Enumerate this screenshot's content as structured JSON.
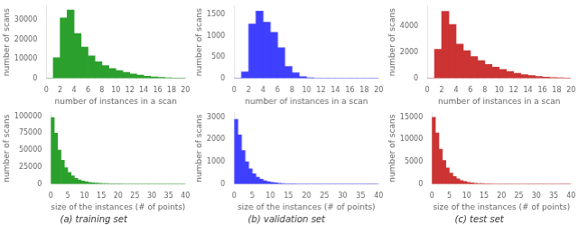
{
  "chart_data": [
    {
      "type": "histogram",
      "bins": [
        0,
        1,
        2,
        3,
        4,
        5,
        6,
        7,
        8,
        9,
        10,
        11,
        12,
        13,
        14,
        15,
        16,
        17,
        18,
        19,
        20
      ],
      "values": [
        0,
        10500,
        31000,
        35000,
        23000,
        16000,
        11500,
        8500,
        6500,
        5000,
        4000,
        3000,
        2200,
        1600,
        1100,
        700,
        450,
        280,
        160,
        80
      ],
      "color": "#2ca02c",
      "xlabel": "number of instances in a scan",
      "ylabel": "number of scans",
      "xlim": [
        0,
        20
      ],
      "xticks": [
        0,
        2,
        4,
        6,
        8,
        10,
        12,
        14,
        16,
        18,
        20
      ],
      "ylim": [
        0,
        37000
      ],
      "yticks": [
        0,
        10000,
        20000,
        30000
      ],
      "grid": false
    },
    {
      "type": "histogram",
      "bins": [
        0,
        1,
        2,
        3,
        4,
        5,
        6,
        7,
        8,
        9,
        10,
        11,
        12,
        13,
        14,
        15,
        16,
        17,
        18,
        19,
        20
      ],
      "values": [
        0,
        150,
        1280,
        1580,
        1320,
        1080,
        720,
        280,
        130,
        40,
        10,
        0,
        0,
        0,
        0,
        0,
        0,
        0,
        0,
        0
      ],
      "color": "#3f3fff",
      "xlabel": "number of instances in a scan",
      "ylabel": "number of scans",
      "xlim": [
        0,
        20
      ],
      "xticks": [
        0,
        2,
        4,
        6,
        8,
        10,
        12,
        14,
        16,
        18,
        20
      ],
      "ylim": [
        0,
        1700
      ],
      "yticks": [
        0,
        500,
        1000,
        1500
      ],
      "grid": false
    },
    {
      "type": "histogram",
      "bins": [
        0,
        1,
        2,
        3,
        4,
        5,
        6,
        7,
        8,
        9,
        10,
        11,
        12,
        13,
        14,
        15,
        16,
        17,
        18,
        19,
        20
      ],
      "values": [
        0,
        2200,
        5100,
        4100,
        2600,
        2100,
        1650,
        1350,
        1050,
        850,
        680,
        520,
        380,
        280,
        200,
        140,
        90,
        55,
        30,
        15
      ],
      "color": "#cc3333",
      "xlabel": "number of instances in a scan",
      "ylabel": "number of scans",
      "xlim": [
        0,
        20
      ],
      "xticks": [
        0,
        2,
        4,
        6,
        8,
        10,
        12,
        14,
        16,
        18,
        20
      ],
      "ylim": [
        0,
        5500
      ],
      "yticks": [
        0,
        2000,
        4000
      ],
      "grid": false
    },
    {
      "type": "histogram",
      "bins": [
        0,
        1,
        2,
        3,
        4,
        5,
        6,
        7,
        8,
        9,
        10,
        11,
        12,
        13,
        14,
        15,
        16,
        17,
        18,
        19,
        20,
        21,
        22,
        23,
        24,
        25,
        26,
        27,
        28,
        29,
        30,
        31,
        32,
        33,
        34,
        35,
        36,
        37,
        38,
        39,
        40
      ],
      "values": [
        98000,
        75000,
        50000,
        35000,
        24000,
        17000,
        12000,
        8500,
        6000,
        4500,
        3200,
        2400,
        1800,
        1350,
        1000,
        780,
        600,
        470,
        370,
        290,
        230,
        180,
        145,
        115,
        90,
        72,
        57,
        45,
        36,
        28,
        22,
        18,
        14,
        11,
        9,
        7,
        5,
        4,
        3,
        2
      ],
      "color": "#2ca02c",
      "xlabel": "size of the instances (# of points)",
      "ylabel": "number of scans",
      "xlim": [
        0,
        40
      ],
      "xticks": [
        0,
        5,
        10,
        15,
        20,
        25,
        30,
        35,
        40
      ],
      "ylim": [
        0,
        105000
      ],
      "yticks": [
        0,
        25000,
        50000,
        75000,
        100000
      ],
      "grid": false,
      "annotations": [
        "(a) training set"
      ]
    },
    {
      "type": "histogram",
      "bins": [
        0,
        1,
        2,
        3,
        4,
        5,
        6,
        7,
        8,
        9,
        10,
        11,
        12,
        13,
        14,
        15,
        16,
        17,
        18,
        19,
        20,
        21,
        22,
        23,
        24,
        25,
        26,
        27,
        28,
        29,
        30,
        31,
        32,
        33,
        34,
        35,
        36,
        37,
        38,
        39,
        40
      ],
      "values": [
        2900,
        2200,
        1500,
        1000,
        680,
        460,
        310,
        210,
        145,
        100,
        68,
        47,
        33,
        23,
        16,
        11,
        8,
        5,
        4,
        3,
        2,
        2,
        1,
        1,
        1,
        0,
        0,
        0,
        0,
        0,
        0,
        0,
        0,
        0,
        0,
        0,
        0,
        0,
        0,
        0
      ],
      "color": "#3f3fff",
      "xlabel": "size of the instances (# of points)",
      "ylabel": "number of scans",
      "xlim": [
        0,
        40
      ],
      "xticks": [
        0,
        5,
        10,
        15,
        20,
        25,
        30,
        35,
        40
      ],
      "ylim": [
        0,
        3200
      ],
      "yticks": [
        0,
        1000,
        2000,
        3000
      ],
      "grid": false,
      "annotations": [
        "(b) validation set"
      ]
    },
    {
      "type": "histogram",
      "bins": [
        0,
        1,
        2,
        3,
        4,
        5,
        6,
        7,
        8,
        9,
        10,
        11,
        12,
        13,
        14,
        15,
        16,
        17,
        18,
        19,
        20,
        21,
        22,
        23,
        24,
        25,
        26,
        27,
        28,
        29,
        30,
        31,
        32,
        33,
        34,
        35,
        36,
        37,
        38,
        39,
        40
      ],
      "values": [
        15000,
        11500,
        7800,
        5300,
        3600,
        2450,
        1680,
        1150,
        790,
        545,
        375,
        260,
        180,
        125,
        86,
        60,
        41,
        29,
        20,
        14,
        10,
        7,
        5,
        3,
        2,
        2,
        1,
        1,
        1,
        0,
        0,
        0,
        0,
        0,
        0,
        0,
        0,
        0,
        0,
        0
      ],
      "color": "#cc3333",
      "xlabel": "size of the instances (# of points)",
      "ylabel": "number of scans",
      "xlim": [
        0,
        40
      ],
      "xticks": [
        0,
        5,
        10,
        15,
        20,
        25,
        30,
        35,
        40
      ],
      "ylim": [
        0,
        16000
      ],
      "yticks": [
        0,
        5000,
        10000,
        15000
      ],
      "grid": false,
      "annotations": [
        "(c) test set"
      ]
    }
  ]
}
